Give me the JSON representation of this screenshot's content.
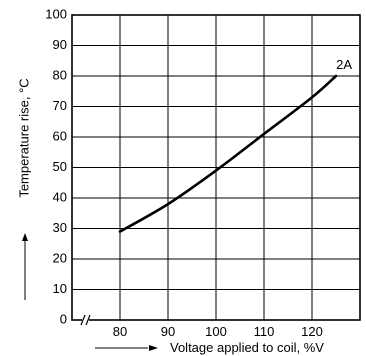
{
  "chart_data": {
    "type": "line",
    "title": "",
    "xlabel": "Voltage applied to coil, %V",
    "ylabel": "Temperature rise, °C",
    "xlim": [
      70,
      130
    ],
    "ylim": [
      0,
      100
    ],
    "x_ticks": [
      80,
      90,
      100,
      110,
      120
    ],
    "y_ticks": [
      0,
      10,
      20,
      30,
      40,
      50,
      60,
      70,
      80,
      90,
      100
    ],
    "x_axis_break": true,
    "grid": true,
    "series": [
      {
        "name": "2A",
        "x": [
          80,
          90,
          100,
          110,
          120,
          125
        ],
        "y": [
          29,
          38,
          49,
          61,
          73,
          80
        ]
      }
    ]
  }
}
